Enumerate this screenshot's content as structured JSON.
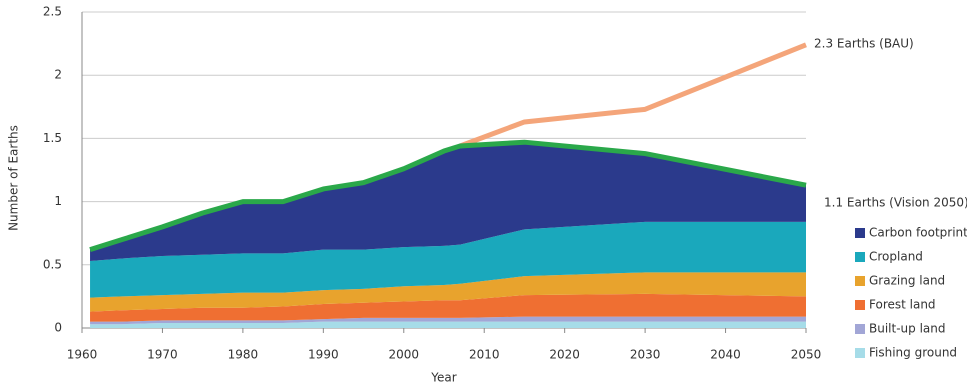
{
  "chart_data": {
    "type": "stacked-area",
    "x_label": "Year",
    "y_label": "Number of Earths",
    "x": [
      1961,
      1965,
      1970,
      1975,
      1980,
      1985,
      1990,
      1995,
      2000,
      2005,
      2007,
      2015,
      2030,
      2050
    ],
    "series": [
      {
        "name": "Fishing ground",
        "color": "#a6dce8",
        "values": [
          0.03,
          0.03,
          0.04,
          0.04,
          0.04,
          0.04,
          0.05,
          0.05,
          0.05,
          0.05,
          0.05,
          0.05,
          0.05,
          0.05
        ]
      },
      {
        "name": "Built-up land",
        "color": "#a2a6d6",
        "values": [
          0.02,
          0.02,
          0.02,
          0.02,
          0.02,
          0.02,
          0.02,
          0.03,
          0.03,
          0.03,
          0.03,
          0.04,
          0.04,
          0.04
        ]
      },
      {
        "name": "Forest land",
        "color": "#ef6f32",
        "values": [
          0.08,
          0.09,
          0.09,
          0.1,
          0.1,
          0.11,
          0.12,
          0.12,
          0.13,
          0.14,
          0.14,
          0.17,
          0.18,
          0.16
        ]
      },
      {
        "name": "Grazing land",
        "color": "#e8a32d",
        "values": [
          0.11,
          0.11,
          0.11,
          0.11,
          0.12,
          0.11,
          0.11,
          0.11,
          0.12,
          0.12,
          0.13,
          0.15,
          0.17,
          0.19
        ]
      },
      {
        "name": "Cropland",
        "color": "#1aa8bc",
        "values": [
          0.29,
          0.3,
          0.31,
          0.31,
          0.31,
          0.31,
          0.32,
          0.31,
          0.31,
          0.31,
          0.31,
          0.37,
          0.4,
          0.4
        ]
      },
      {
        "name": "Carbon footprint",
        "color": "#2b3a8c",
        "values": [
          0.09,
          0.15,
          0.23,
          0.33,
          0.41,
          0.41,
          0.48,
          0.53,
          0.62,
          0.75,
          0.78,
          0.69,
          0.54,
          0.29
        ]
      }
    ],
    "lines": [
      {
        "label": "2.3 Earths (BAU)",
        "color": "#f4a57a",
        "x": [
          2007,
          2015,
          2030,
          2050
        ],
        "values": [
          1.44,
          1.63,
          1.73,
          2.24
        ]
      },
      {
        "label": "1.1 Earths (Vision 2050)",
        "color": "#2aa84a",
        "x": [
          1961,
          1965,
          1970,
          1975,
          1980,
          1985,
          1990,
          1995,
          2000,
          2005,
          2007,
          2015,
          2030,
          2050
        ],
        "values": [
          0.62,
          0.7,
          0.8,
          0.91,
          1.0,
          1.0,
          1.1,
          1.15,
          1.26,
          1.4,
          1.44,
          1.47,
          1.38,
          1.13
        ]
      }
    ],
    "xlim": [
      1960,
      2050
    ],
    "xticks": [
      1960,
      1970,
      1980,
      1990,
      2000,
      2010,
      2020,
      2030,
      2040,
      2050
    ],
    "ylim": [
      0,
      2.5
    ],
    "yticks": [
      0,
      0.5,
      1,
      1.5,
      2,
      2.5
    ],
    "grid": true,
    "legend": "bottom-right"
  }
}
